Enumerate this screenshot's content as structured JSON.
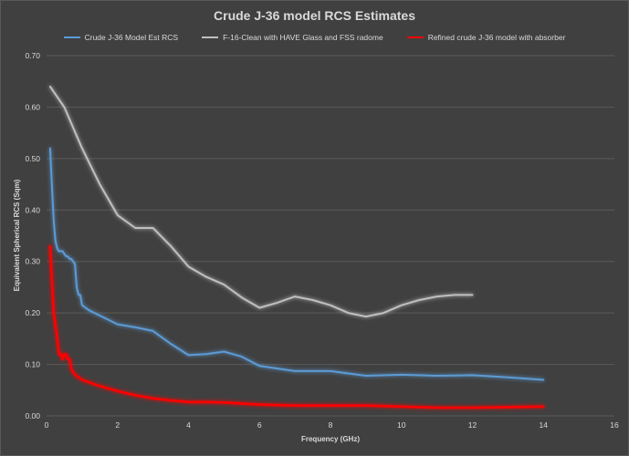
{
  "chart_data": {
    "type": "line",
    "title": "Crude J-36 model RCS Estimates",
    "xlabel": "Frequency (GHz)",
    "ylabel": "Equivalent Spherical RCS (Sqm)",
    "xlim": [
      0,
      16
    ],
    "ylim": [
      0,
      0.7
    ],
    "x_ticks": [
      "0",
      "2",
      "4",
      "6",
      "8",
      "10",
      "12",
      "14",
      "16"
    ],
    "y_ticks": [
      "0.00",
      "0.10",
      "0.20",
      "0.30",
      "0.40",
      "0.50",
      "0.60",
      "0.70"
    ],
    "grid": "horizontal",
    "legend_position": "top",
    "series": [
      {
        "name": "Crude J-36 Model Est RCS",
        "color": "#5b9bd5",
        "points": [
          [
            0.1,
            0.52
          ],
          [
            0.15,
            0.45
          ],
          [
            0.2,
            0.38
          ],
          [
            0.25,
            0.34
          ],
          [
            0.3,
            0.325
          ],
          [
            0.35,
            0.32
          ],
          [
            0.4,
            0.32
          ],
          [
            0.45,
            0.32
          ],
          [
            0.5,
            0.315
          ],
          [
            0.55,
            0.31
          ],
          [
            0.6,
            0.31
          ],
          [
            0.65,
            0.305
          ],
          [
            0.7,
            0.305
          ],
          [
            0.8,
            0.295
          ],
          [
            0.85,
            0.25
          ],
          [
            0.9,
            0.235
          ],
          [
            0.95,
            0.235
          ],
          [
            1.0,
            0.215
          ],
          [
            1.2,
            0.205
          ],
          [
            1.5,
            0.195
          ],
          [
            2.0,
            0.178
          ],
          [
            2.5,
            0.172
          ],
          [
            3.0,
            0.165
          ],
          [
            3.5,
            0.14
          ],
          [
            4.0,
            0.118
          ],
          [
            4.5,
            0.12
          ],
          [
            5.0,
            0.125
          ],
          [
            5.5,
            0.115
          ],
          [
            6.0,
            0.097
          ],
          [
            7.0,
            0.087
          ],
          [
            8.0,
            0.087
          ],
          [
            9.0,
            0.078
          ],
          [
            10.0,
            0.08
          ],
          [
            11.0,
            0.078
          ],
          [
            12.0,
            0.079
          ],
          [
            13.0,
            0.075
          ],
          [
            14.0,
            0.07
          ]
        ]
      },
      {
        "name": "F-16-Clean with HAVE Glass and FSS radome",
        "color": "#bfbfbf",
        "points": [
          [
            0.1,
            0.64
          ],
          [
            0.5,
            0.6
          ],
          [
            1.0,
            0.52
          ],
          [
            1.5,
            0.45
          ],
          [
            2.0,
            0.39
          ],
          [
            2.5,
            0.365
          ],
          [
            3.0,
            0.365
          ],
          [
            3.5,
            0.33
          ],
          [
            4.0,
            0.29
          ],
          [
            4.5,
            0.27
          ],
          [
            5.0,
            0.255
          ],
          [
            5.5,
            0.23
          ],
          [
            6.0,
            0.21
          ],
          [
            6.5,
            0.22
          ],
          [
            7.0,
            0.232
          ],
          [
            7.5,
            0.225
          ],
          [
            8.0,
            0.215
          ],
          [
            8.5,
            0.2
          ],
          [
            9.0,
            0.193
          ],
          [
            9.5,
            0.2
          ],
          [
            10.0,
            0.215
          ],
          [
            10.5,
            0.225
          ],
          [
            11.0,
            0.232
          ],
          [
            11.5,
            0.235
          ],
          [
            12.0,
            0.235
          ]
        ]
      },
      {
        "name": "Refined crude J-36 model with absorber",
        "color": "#ff0000",
        "points": [
          [
            0.1,
            0.33
          ],
          [
            0.2,
            0.2
          ],
          [
            0.3,
            0.15
          ],
          [
            0.35,
            0.12
          ],
          [
            0.4,
            0.12
          ],
          [
            0.45,
            0.11
          ],
          [
            0.5,
            0.12
          ],
          [
            0.55,
            0.12
          ],
          [
            0.6,
            0.11
          ],
          [
            0.65,
            0.11
          ],
          [
            0.7,
            0.09
          ],
          [
            0.8,
            0.08
          ],
          [
            1.0,
            0.07
          ],
          [
            1.5,
            0.058
          ],
          [
            2.0,
            0.048
          ],
          [
            2.5,
            0.04
          ],
          [
            3.0,
            0.034
          ],
          [
            3.5,
            0.03
          ],
          [
            4.0,
            0.027
          ],
          [
            4.5,
            0.027
          ],
          [
            5.0,
            0.026
          ],
          [
            6.0,
            0.022
          ],
          [
            7.0,
            0.02
          ],
          [
            8.0,
            0.02
          ],
          [
            9.0,
            0.02
          ],
          [
            10.0,
            0.018
          ],
          [
            11.0,
            0.016
          ],
          [
            12.0,
            0.016
          ],
          [
            13.0,
            0.017
          ],
          [
            14.0,
            0.018
          ]
        ]
      }
    ]
  }
}
